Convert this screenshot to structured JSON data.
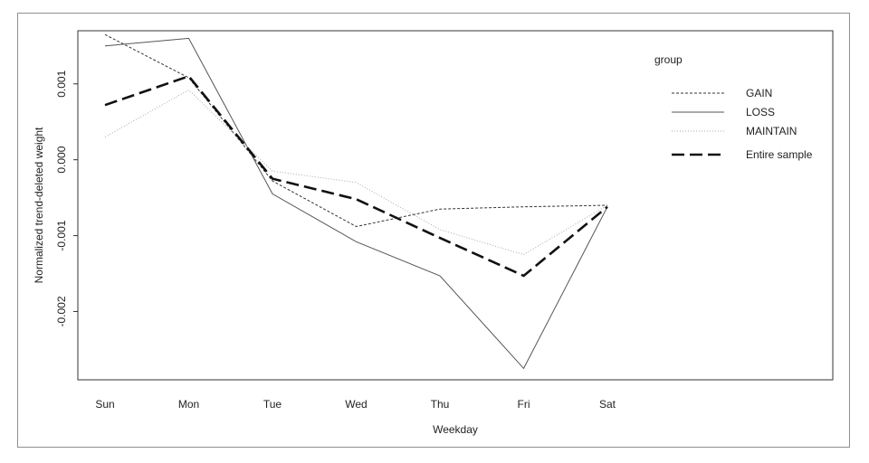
{
  "chart_data": {
    "type": "line",
    "title": "",
    "xlabel": "Weekday",
    "ylabel": "Normalized trend-deleted weight",
    "categories": [
      "Sun",
      "Mon",
      "Tue",
      "Wed",
      "Thu",
      "Fri",
      "Sat"
    ],
    "y_ticks": [
      {
        "value": 0.001,
        "label": "0.001"
      },
      {
        "value": 0.0,
        "label": "0.000"
      },
      {
        "value": -0.001,
        "label": "-0.001"
      },
      {
        "value": -0.002,
        "label": "-0.002"
      }
    ],
    "ylim": [
      -0.0029,
      0.0017
    ],
    "legend": {
      "title": "group",
      "placement": "top-right"
    },
    "series": [
      {
        "name": "GAIN",
        "style": "dotted",
        "color": "#333333",
        "values": [
          0.00165,
          0.00108,
          -0.00028,
          -0.00088,
          -0.00065,
          -0.00062,
          -0.0006
        ]
      },
      {
        "name": "LOSS",
        "style": "solid",
        "color": "#555555",
        "values": [
          0.0015,
          0.0016,
          -0.00045,
          -0.00108,
          -0.00153,
          -0.00275,
          -0.00062
        ]
      },
      {
        "name": "MAINTAIN",
        "style": "light-dotted",
        "color": "#aaaaaa",
        "values": [
          0.0003,
          0.00092,
          -0.00015,
          -0.0003,
          -0.00092,
          -0.00125,
          -0.0006
        ]
      },
      {
        "name": "Entire sample",
        "style": "long-dash",
        "color": "#111111",
        "values": [
          0.00072,
          0.0011,
          -0.00025,
          -0.00052,
          -0.00103,
          -0.00153,
          -0.00062
        ]
      }
    ]
  }
}
